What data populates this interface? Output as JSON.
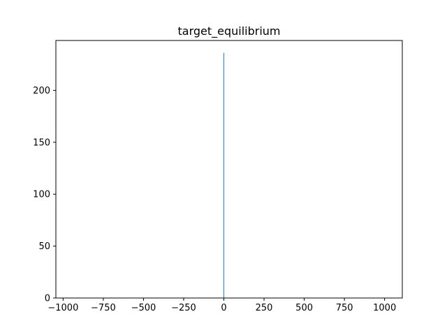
{
  "chart_data": {
    "type": "bar",
    "title": "target_equilibrium",
    "xlabel": "",
    "ylabel": "",
    "xlim": [
      -1045,
      1110
    ],
    "ylim": [
      0,
      248
    ],
    "xticks": [
      -1000,
      -750,
      -500,
      -250,
      0,
      250,
      500,
      750,
      1000
    ],
    "xtick_labels": [
      "−1000",
      "−750",
      "−500",
      "−250",
      "0",
      "250",
      "500",
      "750",
      "1000"
    ],
    "yticks": [
      0,
      50,
      100,
      150,
      200
    ],
    "ytick_labels": [
      "0",
      "50",
      "100",
      "150",
      "200"
    ],
    "grid": false,
    "bars": [
      {
        "x": 0,
        "value": 236,
        "color": "#1f77b4"
      }
    ]
  }
}
